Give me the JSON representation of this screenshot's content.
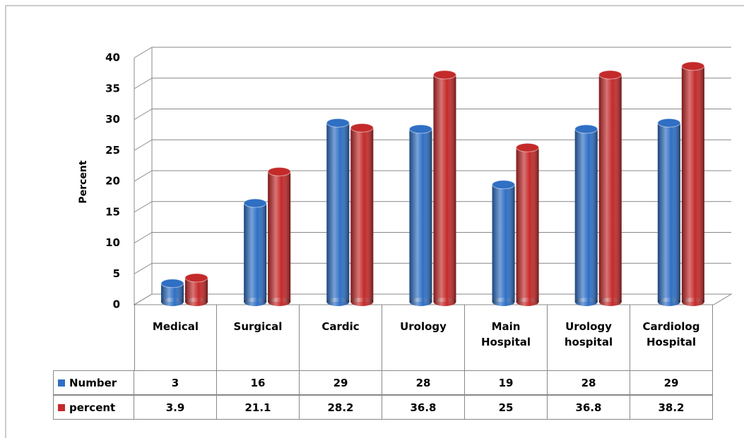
{
  "chart_data": {
    "type": "bar",
    "y_label": "Percent",
    "categories": [
      "Medical",
      "Surgical",
      "Cardic",
      "Urology",
      "Main Hospital",
      "Urology hospital",
      "Cardiolog Hospital"
    ],
    "series": [
      {
        "name": "Number",
        "color": "#2f6fc4",
        "values": [
          3,
          16,
          29,
          28,
          19,
          28,
          29
        ]
      },
      {
        "name": "percent",
        "color": "#c42a2a",
        "values": [
          3.9,
          21.1,
          28.2,
          36.8,
          25,
          36.8,
          38.2
        ]
      }
    ],
    "ylim": [
      0,
      40
    ],
    "yticks": [
      0,
      5,
      10,
      15,
      20,
      25,
      30,
      35,
      40
    ],
    "grid": true
  }
}
